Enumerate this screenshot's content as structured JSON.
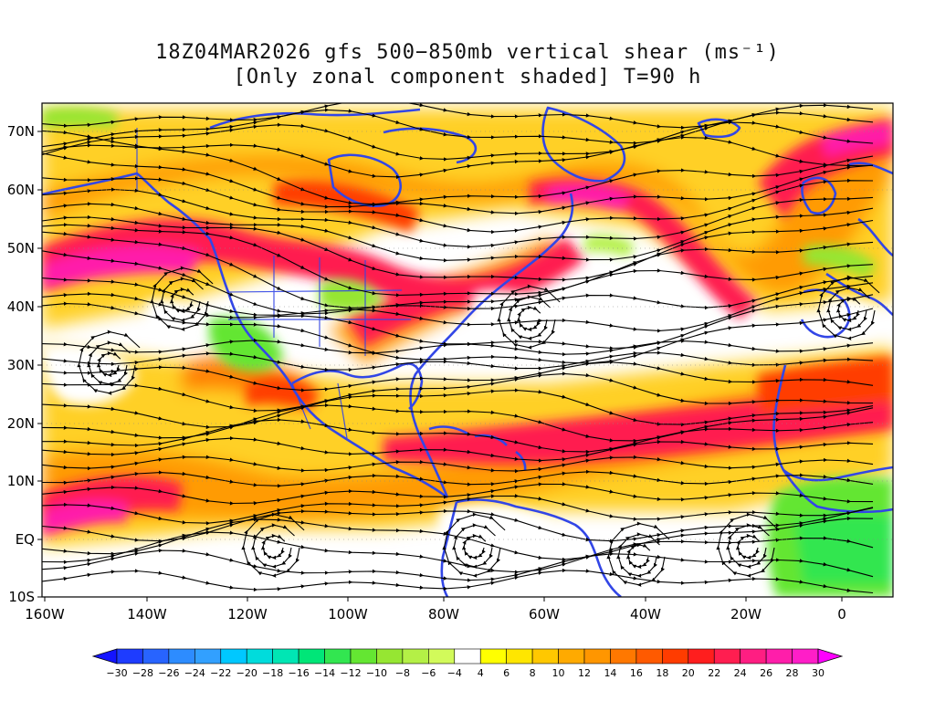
{
  "title": {
    "line1": "18Z04MAR2026 gfs 500−850mb vertical shear (ms⁻¹)",
    "line2": "[Only zonal component shaded] T=90 h"
  },
  "lat_ticks": [
    "70N",
    "60N",
    "50N",
    "40N",
    "30N",
    "20N",
    "10N",
    "EQ",
    "10S"
  ],
  "lon_ticks": [
    "160W",
    "140W",
    "120W",
    "100W",
    "80W",
    "60W",
    "40W",
    "20W",
    "0"
  ],
  "colorbar": {
    "levels": [
      "−30",
      "−28",
      "−26",
      "−24",
      "−22",
      "−20",
      "−18",
      "−16",
      "−14",
      "−12",
      "−10",
      "−8",
      "−6",
      "−4",
      "4",
      "6",
      "8",
      "10",
      "12",
      "14",
      "16",
      "18",
      "20",
      "22",
      "24",
      "26",
      "28",
      "30"
    ],
    "colors": [
      "#1414ff",
      "#1e3cff",
      "#2864ff",
      "#2d8cff",
      "#32a0ff",
      "#00c8ff",
      "#00dcdc",
      "#00e6b4",
      "#00e678",
      "#32e650",
      "#64e632",
      "#96e632",
      "#b4f046",
      "#d2fa5a",
      "#ffffff",
      "#ffff00",
      "#ffe600",
      "#ffc800",
      "#ffaa00",
      "#ff9600",
      "#ff7800",
      "#ff5a00",
      "#ff3c00",
      "#ff1e1e",
      "#ff1e50",
      "#ff1e82",
      "#ff1eaa",
      "#ff1ec8",
      "#ff00ff"
    ]
  },
  "colors": {
    "coastline": "#3246e6",
    "streamline": "#000000"
  }
}
